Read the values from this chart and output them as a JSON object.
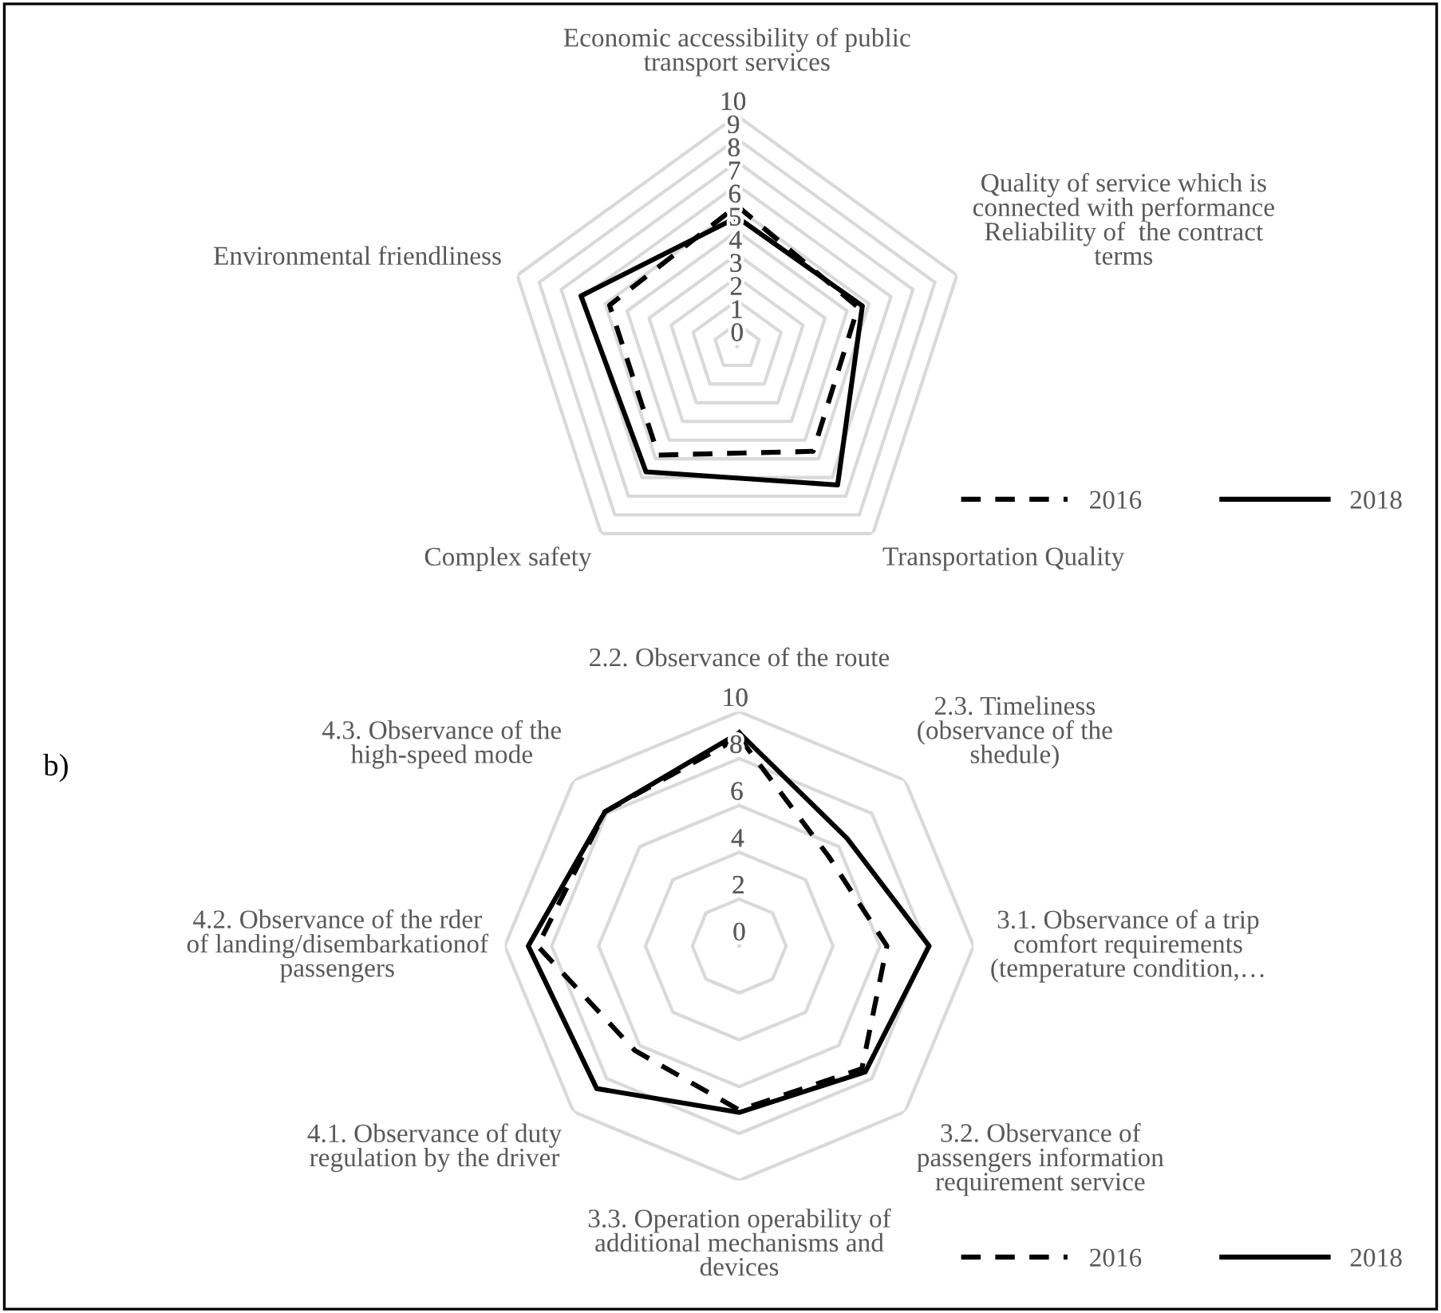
{
  "chart_data": [
    {
      "type": "radar",
      "categories": [
        "Economic accessibility of public transport services",
        "Quality of service which is connected with performance Reliability of  the contract terms",
        "Transportation Quality",
        "Complex safety",
        "Environmental friendliness"
      ],
      "series": [
        {
          "name": "2016",
          "color": "#000000",
          "line_style": "dashed",
          "values": [
            6.1,
            5.5,
            5.6,
            5.8,
            5.8
          ]
        },
        {
          "name": "2018",
          "color": "#000000",
          "line_style": "solid",
          "values": [
            5.6,
            5.7,
            7.4,
            6.7,
            7.1
          ]
        }
      ],
      "ylim": [
        0,
        10
      ],
      "yticks": [
        0,
        1,
        2,
        3,
        4,
        5,
        6,
        7,
        8,
        9,
        10
      ],
      "grid": true,
      "legend": "bottom right"
    },
    {
      "type": "radar",
      "title": "b)",
      "categories": [
        "2.2. Observance of the route",
        "2.3. Timeliness (observance of the shedule)",
        "3.1. Observance of a trip comfort requirements (temperature condition,…",
        "3.2. Observance of passengers information requirement service",
        "3.3. Operation operability of additional mechanisms and devices",
        "4.1. Observance of duty regulation by the driver",
        "4.2. Observance of the rder of landing/disembarkationof passengers",
        "4.3. Observance of the high-speed mode"
      ],
      "series": [
        {
          "name": "2016",
          "color": "#000000",
          "line_style": "dashed",
          "values": [
            8.9,
            5.4,
            6.3,
            7.4,
            7.0,
            6.3,
            8.6,
            8.1
          ]
        },
        {
          "name": "2018",
          "color": "#000000",
          "line_style": "solid",
          "values": [
            9.1,
            6.5,
            8.1,
            7.6,
            7.1,
            8.6,
            9.0,
            8.1
          ]
        }
      ],
      "ylim": [
        0,
        10
      ],
      "yticks": [
        0,
        2,
        4,
        6,
        8,
        10
      ],
      "grid": true,
      "legend": "bottom right"
    }
  ]
}
